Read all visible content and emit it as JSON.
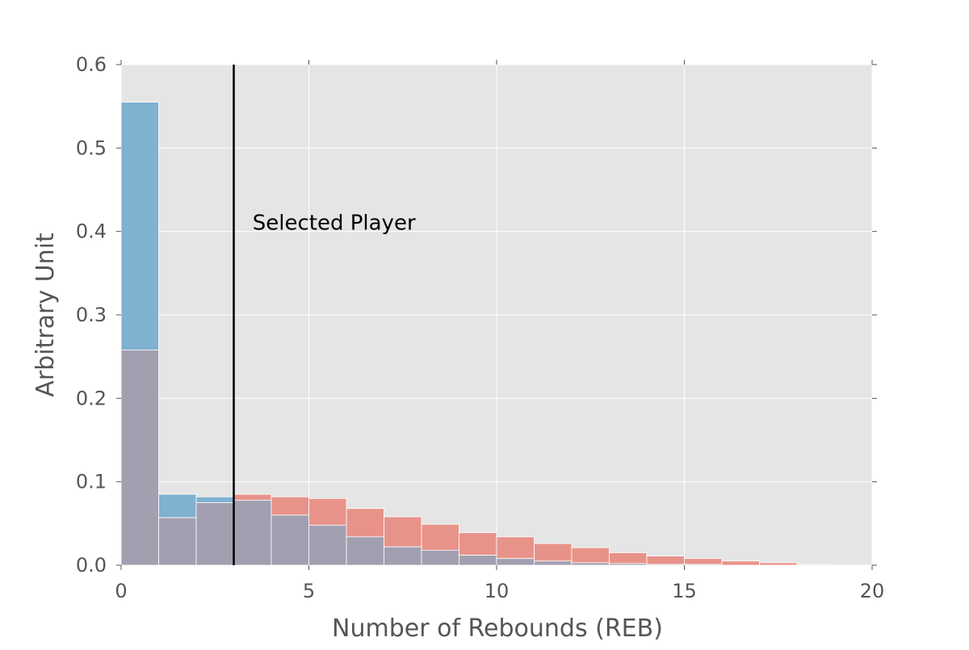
{
  "chart_data": {
    "type": "bar",
    "xlabel": "Number of Rebounds (REB)",
    "ylabel": "Arbitrary Unit",
    "xlim": [
      0,
      20
    ],
    "ylim": [
      0,
      0.6
    ],
    "xticks": [
      "0",
      "5",
      "10",
      "15",
      "20"
    ],
    "yticks": [
      "0.0",
      "0.1",
      "0.2",
      "0.3",
      "0.4",
      "0.5",
      "0.6"
    ],
    "grid": true,
    "background": "#e5e5e5",
    "bin_edges": [
      0,
      1,
      2,
      3,
      4,
      5,
      6,
      7,
      8,
      9,
      10,
      11,
      12,
      13,
      14,
      15,
      16,
      17,
      18,
      19,
      20
    ],
    "series": [
      {
        "color": "#7fb1d0",
        "values": [
          0.555,
          0.085,
          0.082,
          0.078,
          0.06,
          0.048,
          0.034,
          0.022,
          0.018,
          0.012,
          0.008,
          0.005,
          0.003,
          0.002,
          0.001,
          0.001,
          0.0,
          0.0,
          0.0,
          0.0
        ]
      },
      {
        "color": "#e8938a",
        "values": [
          0.258,
          0.057,
          0.075,
          0.085,
          0.082,
          0.08,
          0.068,
          0.058,
          0.049,
          0.039,
          0.034,
          0.026,
          0.021,
          0.015,
          0.011,
          0.008,
          0.005,
          0.003,
          0.001,
          0.0
        ]
      }
    ],
    "overlap_color": "#a29fb1",
    "reference_line": {
      "x": 3,
      "color": "#000000"
    },
    "annotation": {
      "text": "Selected Player",
      "x": 3.5,
      "y": 0.4
    }
  }
}
